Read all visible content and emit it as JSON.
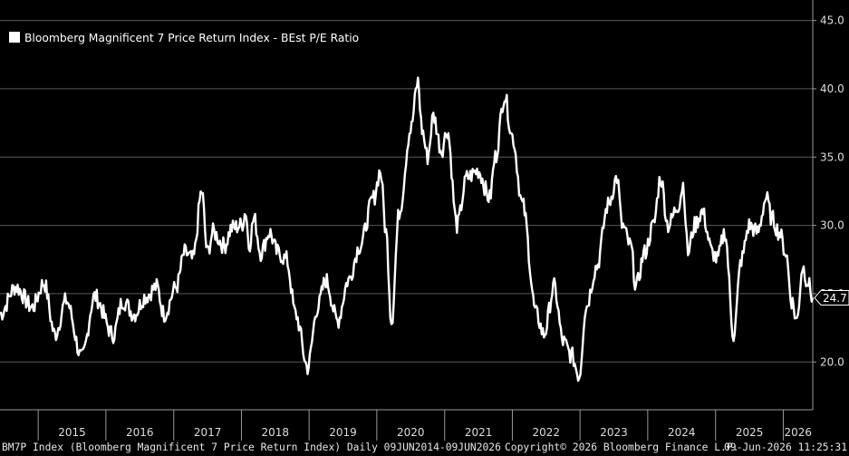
{
  "chart_data": {
    "type": "line",
    "title": "",
    "xlabel": "",
    "ylabel": "",
    "legend": {
      "label": "Bloomberg Magnificent 7 Price Return Index - BEst P/E Ratio",
      "placement": "top-left"
    },
    "last_value": "24.7",
    "ylim": [
      16.5,
      46.5
    ],
    "y_ticks": [
      "20.0",
      "25.0",
      "30.0",
      "35.0",
      "40.0",
      "45.0"
    ],
    "y_tick_values": [
      20,
      25,
      30,
      35,
      40,
      45
    ],
    "x_ticks": [
      "2015",
      "2016",
      "2017",
      "2018",
      "2019",
      "2020",
      "2021",
      "2022",
      "2023",
      "2024",
      "2025",
      "2026"
    ],
    "x_range": [
      "2014-06-09",
      "2026-06-09"
    ],
    "gridlines": "horizontal",
    "colors": {
      "background": "#000000",
      "line": "#ffffff",
      "grid": "#5a5a5a"
    },
    "series": [
      {
        "x": [
          "2014-06-09",
          "2014-09-01",
          "2014-12-01",
          "2015-02-01",
          "2015-04-01",
          "2015-06-01",
          "2015-08-25",
          "2015-11-01",
          "2016-02-10",
          "2016-04-01",
          "2016-06-01",
          "2016-08-01",
          "2016-10-01",
          "2016-11-10",
          "2017-01-15",
          "2017-03-01",
          "2017-04-15",
          "2017-06-01",
          "2017-07-01",
          "2017-08-01",
          "2017-10-01",
          "2017-11-10",
          "2018-01-01",
          "2018-01-25",
          "2018-02-10",
          "2018-03-10",
          "2018-04-15",
          "2018-06-01",
          "2018-07-15",
          "2018-09-01",
          "2018-10-20",
          "2018-12-24",
          "2019-02-15",
          "2019-04-01",
          "2019-06-03",
          "2019-08-01",
          "2019-10-01",
          "2019-12-15",
          "2020-01-20",
          "2020-02-20",
          "2020-03-20",
          "2020-05-01",
          "2020-07-01",
          "2020-08-10",
          "2020-09-01",
          "2020-10-01",
          "2020-11-01",
          "2020-12-15",
          "2021-01-15",
          "2021-03-08",
          "2021-05-01",
          "2021-07-01",
          "2021-09-01",
          "2021-10-01",
          "2021-11-20",
          "2022-01-01",
          "2022-02-25",
          "2022-05-10",
          "2022-06-20",
          "2022-08-15",
          "2022-10-01",
          "2022-11-15",
          "2022-12-28",
          "2023-02-01",
          "2023-04-01",
          "2023-06-01",
          "2023-07-20",
          "2023-08-15",
          "2023-10-01",
          "2023-10-30",
          "2023-12-15",
          "2024-02-01",
          "2024-03-10",
          "2024-04-20",
          "2024-06-15",
          "2024-07-10",
          "2024-08-05",
          "2024-09-10",
          "2024-10-20",
          "2024-12-15",
          "2025-01-10",
          "2025-02-20",
          "2025-04-08",
          "2025-05-20",
          "2025-07-01",
          "2025-08-15",
          "2025-10-01",
          "2025-11-01",
          "2025-12-10",
          "2026-01-15",
          "2026-02-15",
          "2026-03-15",
          "2026-04-15",
          "2026-05-10",
          "2026-06-09"
        ],
        "y": [
          23.5,
          25.5,
          24.0,
          25.8,
          22.0,
          24.5,
          20.3,
          24.8,
          22.0,
          24.5,
          23.5,
          24.8,
          25.5,
          23.5,
          25.5,
          28.0,
          27.5,
          32.5,
          28.0,
          29.5,
          28.5,
          29.8,
          30.0,
          31.0,
          28.5,
          30.5,
          28.0,
          29.5,
          28.0,
          27.5,
          23.5,
          19.6,
          24.0,
          26.0,
          23.0,
          26.0,
          28.5,
          32.0,
          34.0,
          29.5,
          23.0,
          31.0,
          37.0,
          40.5,
          37.0,
          35.0,
          38.0,
          35.5,
          37.0,
          30.0,
          33.5,
          34.0,
          32.0,
          35.0,
          39.5,
          36.5,
          31.5,
          23.5,
          22.0,
          25.5,
          21.5,
          20.5,
          19.0,
          24.0,
          27.0,
          31.5,
          33.5,
          30.0,
          28.5,
          25.5,
          28.0,
          30.0,
          33.5,
          30.0,
          31.5,
          33.0,
          28.0,
          30.0,
          31.0,
          28.0,
          27.5,
          29.5,
          22.0,
          27.5,
          30.0,
          29.5,
          32.0,
          30.5,
          29.5,
          28.0,
          24.5,
          23.0,
          27.0,
          26.0,
          24.7
        ]
      }
    ]
  },
  "footer": {
    "left": "BM7P Index (Bloomberg Magnificent 7 Price Return Index) Daily 09JUN2014-09JUN2026",
    "middle": "Copyright© 2026 Bloomberg Finance L.P.",
    "right": "09-Jun-2026 11:25:31"
  }
}
